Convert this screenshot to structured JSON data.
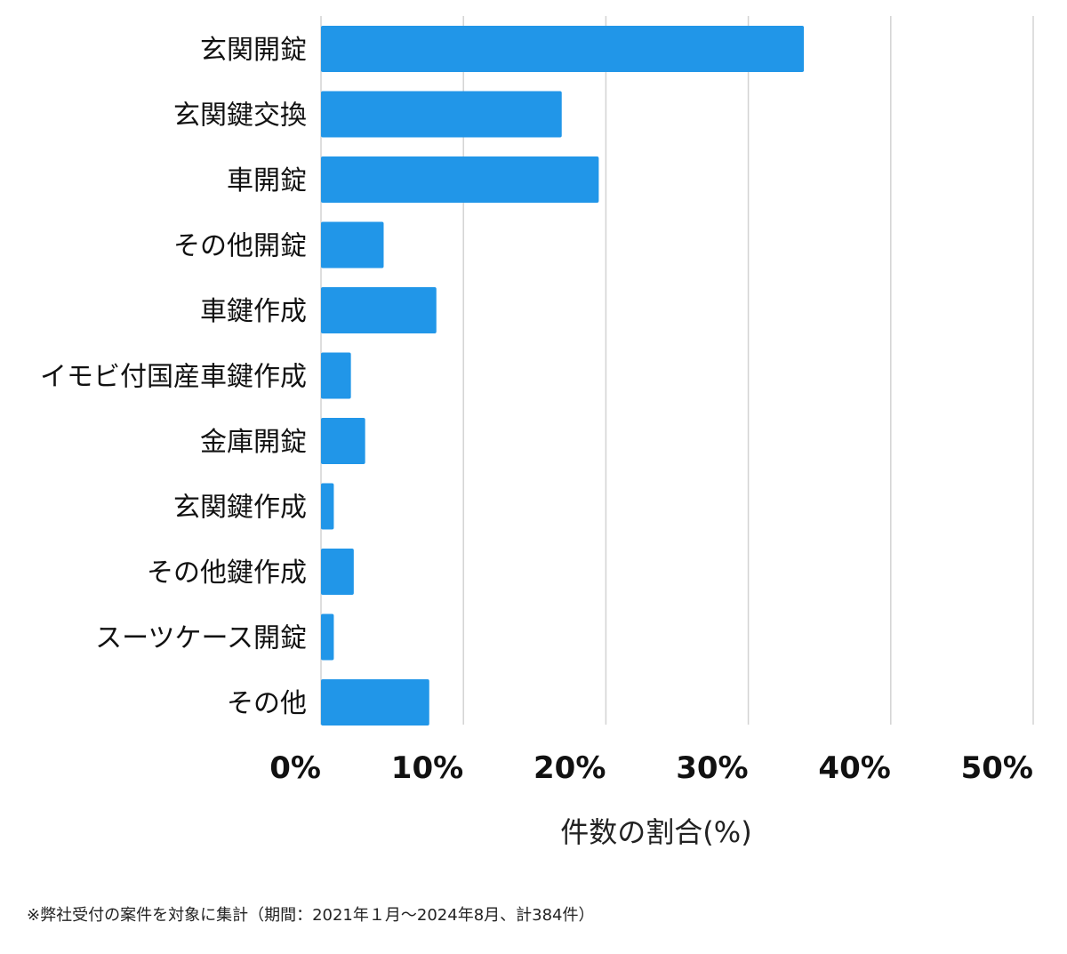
{
  "chart_data": {
    "type": "bar",
    "orientation": "horizontal",
    "categories": [
      "玄関開錠",
      "玄関鍵交換",
      "車開錠",
      "その他開錠",
      "車鍵作成",
      "イモビ付国産車鍵作成",
      "金庫開錠",
      "玄関鍵作成",
      "その他鍵作成",
      "スーツケース開錠",
      "その他"
    ],
    "values": [
      33.9,
      16.9,
      19.5,
      4.4,
      8.1,
      2.1,
      3.1,
      0.9,
      2.3,
      0.9,
      7.6
    ],
    "xlabel": "件数の割合(%)",
    "xlim": [
      0,
      50
    ],
    "xticks": [
      0,
      10,
      20,
      30,
      40,
      50
    ],
    "xtick_labels": [
      "0%",
      "10%",
      "20%",
      "30%",
      "40%",
      "50%"
    ],
    "grid": "vertical",
    "bar_color": "#2196e8",
    "grid_color": "#d3d3d3"
  },
  "footnote": "※弊社受付の案件を対象に集計（期間：2021年１月～2024年8月、計384件）"
}
